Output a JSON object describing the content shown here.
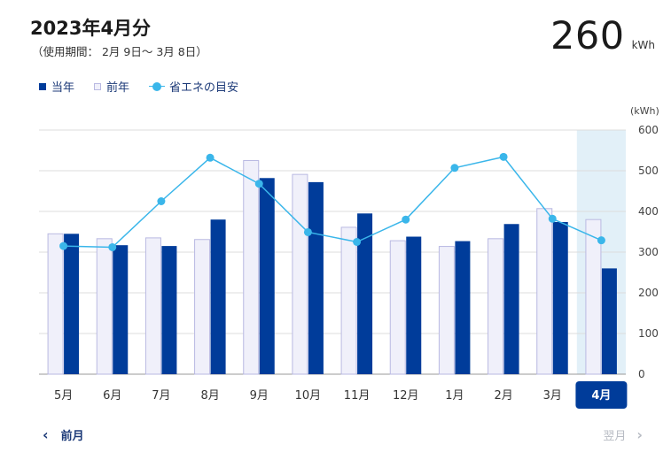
{
  "header": {
    "title": "2023年4月分",
    "period": "（使用期間： 2月 9日～ 3月 8日）",
    "total_value": "260",
    "total_unit": "kWh"
  },
  "legend": {
    "current": "当年",
    "previous": "前年",
    "target": "省エネの目安"
  },
  "nav": {
    "prev_label": "前月",
    "next_label": "翌月"
  },
  "colors": {
    "current": "#003c9a",
    "previous": "#f0f0fa",
    "target": "#3ab6ea",
    "selected": "#e2f0f8"
  },
  "chart_data": {
    "type": "bar",
    "unit_label": "(kWh)",
    "categories": [
      "5月",
      "6月",
      "7月",
      "8月",
      "9月",
      "10月",
      "11月",
      "12月",
      "1月",
      "2月",
      "3月",
      "4月"
    ],
    "selected_category": "4月",
    "series": [
      {
        "name": "当年",
        "type": "bar",
        "values": [
          345,
          317,
          315,
          380,
          482,
          472,
          395,
          338,
          327,
          369,
          374,
          260
        ]
      },
      {
        "name": "前年",
        "type": "bar",
        "values": [
          345,
          333,
          335,
          331,
          525,
          491,
          361,
          328,
          314,
          333,
          407,
          380
        ]
      },
      {
        "name": "省エネの目安",
        "type": "line",
        "values": [
          315,
          312,
          425,
          532,
          468,
          349,
          325,
          380,
          507,
          534,
          382,
          329
        ]
      }
    ],
    "ylim": [
      0,
      600
    ],
    "yticks": [
      0,
      100,
      200,
      300,
      400,
      500,
      600
    ],
    "grid": true
  }
}
